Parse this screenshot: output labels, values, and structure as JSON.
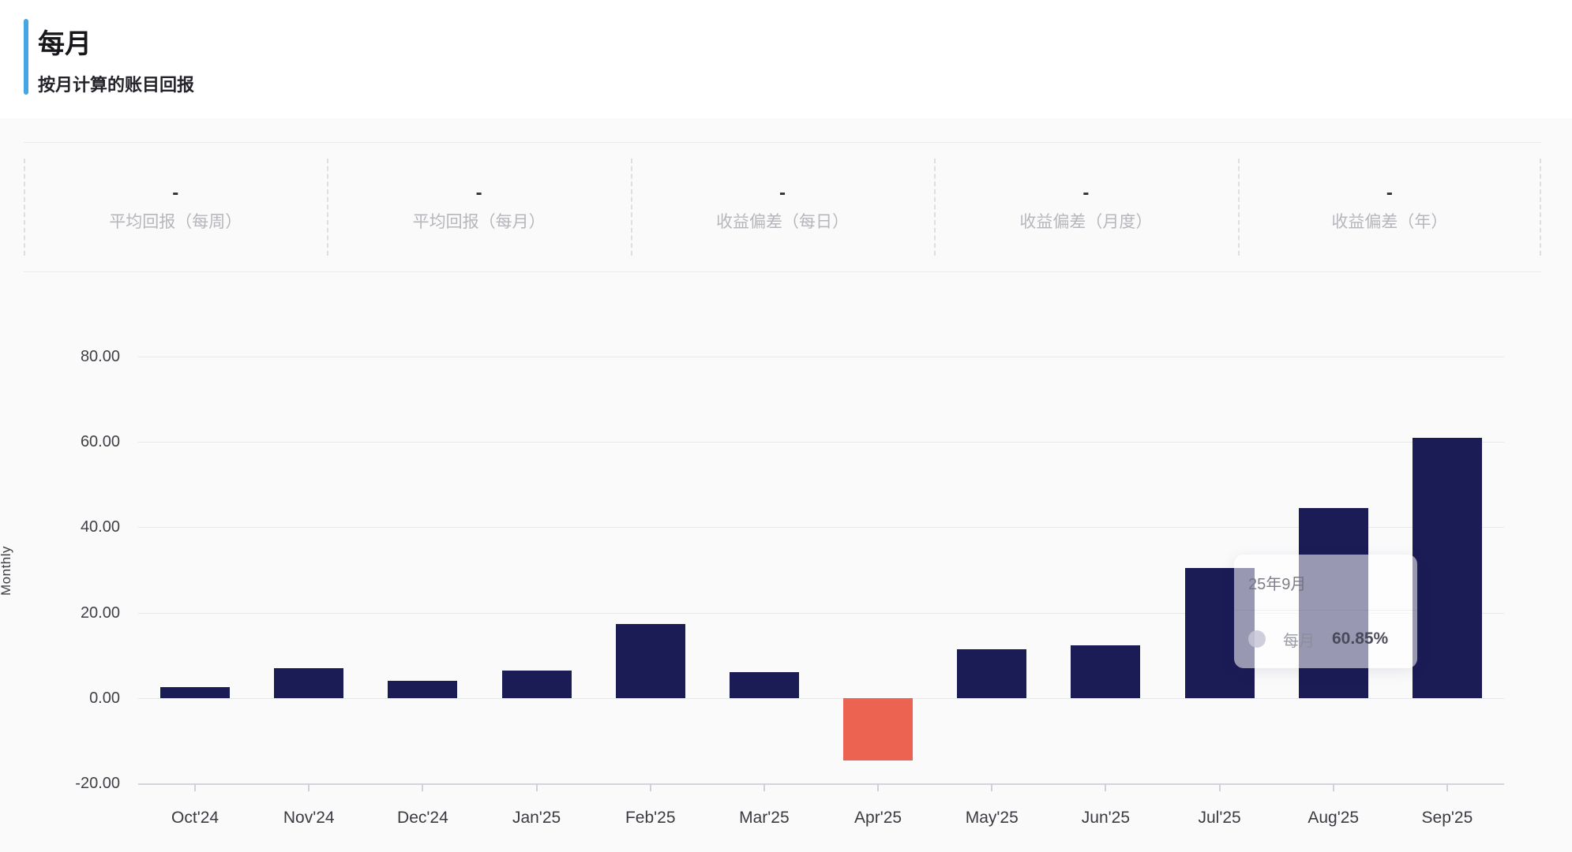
{
  "header": {
    "title": "每月",
    "subtitle": "按月计算的账目回报"
  },
  "stats": [
    {
      "value": "-",
      "label": "平均回报（每周）"
    },
    {
      "value": "-",
      "label": "平均回报（每月）"
    },
    {
      "value": "-",
      "label": "收益偏差（每日）"
    },
    {
      "value": "-",
      "label": "收益偏差（月度）"
    },
    {
      "value": "-",
      "label": "收益偏差（年）"
    }
  ],
  "chart_data": {
    "type": "bar",
    "title": "",
    "xlabel": "",
    "ylabel": "Monthly",
    "categories": [
      "Oct'24",
      "Nov'24",
      "Dec'24",
      "Jan'25",
      "Feb'25",
      "Mar'25",
      "Apr'25",
      "May'25",
      "Jun'25",
      "Jul'25",
      "Aug'25",
      "Sep'25"
    ],
    "values": [
      2.6,
      7.0,
      4.1,
      6.5,
      17.4,
      6.1,
      -14.6,
      11.4,
      12.4,
      30.5,
      44.4,
      60.85
    ],
    "yticks": [
      80,
      60,
      40,
      20,
      0,
      -20
    ],
    "ytick_labels": [
      "80.00",
      "60.00",
      "40.00",
      "20.00",
      "0.00",
      "-20.00"
    ],
    "ylim": [
      -20,
      80
    ],
    "grid": true,
    "legend_position": "none",
    "colors": {
      "positive": "#1b1b56",
      "negative": "#ec6352"
    }
  },
  "tooltip": {
    "title": "25年9月",
    "series_label": "每月",
    "value": "60.85%"
  },
  "accent_color": "#45a6e6"
}
